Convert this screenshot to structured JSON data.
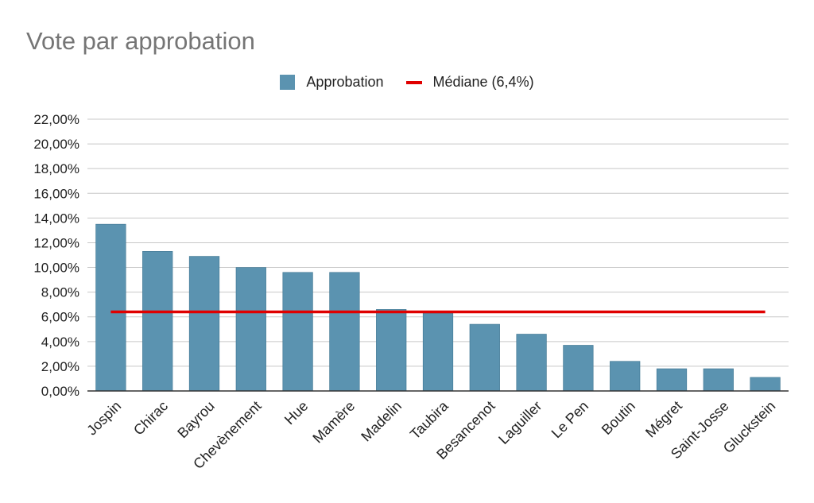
{
  "chart_data": {
    "type": "bar",
    "title": "Vote par approbation",
    "xlabel": "",
    "ylabel": "",
    "ylim": [
      0,
      22
    ],
    "yticks": [
      0,
      2,
      4,
      6,
      8,
      10,
      12,
      14,
      16,
      18,
      20,
      22
    ],
    "ytick_labels": [
      "0,00%",
      "2,00%",
      "4,00%",
      "6,00%",
      "8,00%",
      "10,00%",
      "12,00%",
      "14,00%",
      "16,00%",
      "18,00%",
      "20,00%",
      "22,00%"
    ],
    "categories": [
      "Jospin",
      "Chirac",
      "Bayrou",
      "Chevènement",
      "Hue",
      "Mamère",
      "Madelin",
      "Taubira",
      "Besancenot",
      "Laguiller",
      "Le Pen",
      "Boutin",
      "Mégret",
      "Saint-Josse",
      "Gluckstein"
    ],
    "series": [
      {
        "name": "Approbation",
        "color": "#5b93b0",
        "values": [
          13.5,
          11.3,
          10.9,
          10.0,
          9.6,
          9.6,
          6.6,
          6.3,
          5.4,
          4.6,
          3.7,
          2.4,
          1.8,
          1.8,
          1.1
        ]
      }
    ],
    "reference_line": {
      "name": "Médiane (6,4%)",
      "value": 6.4,
      "color": "#e00000"
    },
    "grid": true,
    "legend_position": "top-center"
  }
}
